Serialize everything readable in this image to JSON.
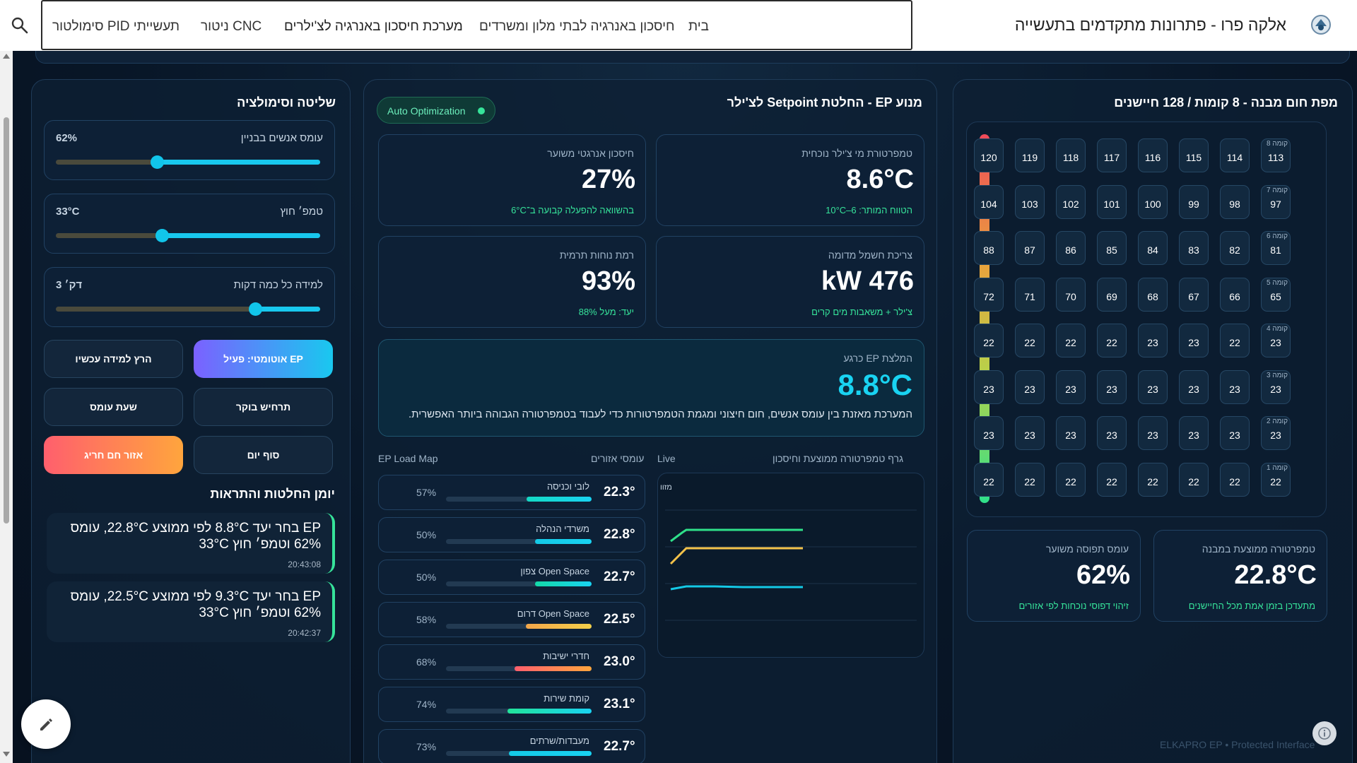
{
  "topbar": {
    "brand": "אלקה פרו - פתרונות מתקדמים בתעשייה",
    "nav": [
      "בית",
      "חיסכון באנרגיה לבתי מלון ומשרדים",
      "מערכת חיסכון באנרגיה לצ'ילרים",
      "ניטור CNC",
      "סימולטור PID תעשייתי"
    ]
  },
  "heatmap": {
    "title": "מפת חום מבנה - 8 קומות / 128 חיישנים",
    "floors": [
      {
        "label": "קומה 8",
        "values": [
          "113",
          "114",
          "115",
          "116",
          "117",
          "118",
          "119",
          "120"
        ]
      },
      {
        "label": "קומה 7",
        "values": [
          "97",
          "98",
          "99",
          "100",
          "101",
          "102",
          "103",
          "104"
        ]
      },
      {
        "label": "קומה 6",
        "values": [
          "81",
          "82",
          "83",
          "84",
          "85",
          "86",
          "87",
          "88"
        ]
      },
      {
        "label": "קומה 5",
        "values": [
          "65",
          "66",
          "67",
          "68",
          "69",
          "70",
          "71",
          "72"
        ]
      },
      {
        "label": "קומה 4",
        "values": [
          "23",
          "22",
          "23",
          "23",
          "22",
          "22",
          "22",
          "22"
        ]
      },
      {
        "label": "קומה 3",
        "values": [
          "23",
          "23",
          "23",
          "23",
          "23",
          "23",
          "23",
          "23"
        ]
      },
      {
        "label": "קומה 2",
        "values": [
          "23",
          "23",
          "23",
          "23",
          "23",
          "23",
          "23",
          "23"
        ]
      },
      {
        "label": "קומה 1",
        "values": [
          "22",
          "22",
          "22",
          "22",
          "22",
          "22",
          "22",
          "22"
        ]
      }
    ],
    "avg_temp_label": "טמפרטורה ממוצעת במבנה",
    "avg_temp": "22.8°C",
    "avg_temp_sub": "מתעדכן בזמן אמת מכל החיישנים",
    "occupancy_label": "עומס תפוסה משוער",
    "occupancy": "62%",
    "occupancy_sub": "זיהוי דפוסי נוכחות לפי אזורים"
  },
  "engine": {
    "title": "מנוע EP - החלטת Setpoint לצ'ילר",
    "badge": "Auto Optimization",
    "chiller_temp_label": "טמפרטורת מי צ'ילר נוכחית",
    "chiller_temp": "8.6°C",
    "chiller_temp_sub": "הטווח המותר: 6–10°C",
    "saving_label": "חיסכון אנרגטי משוער",
    "saving": "27%",
    "saving_sub": "בהשוואה להפעלה קבועה ב־6°C",
    "power_label": "צריכת חשמל מדומה",
    "power": "476 kW",
    "power_sub": "צ'ילר + משאבות מים קרים",
    "comfort_label": "רמת נוחות תרמית",
    "comfort": "93%",
    "comfort_sub": "יעד: מעל 88%",
    "rec_label": "המלצת EP כרגע",
    "rec_value": "8.8°C",
    "rec_text": "המערכת מאזנת בין עומס אנשים, חום חיצוני ומגמת הטמפרטורות כדי לעבוד בטמפרטורה הגבוהה ביותר האפשרית."
  },
  "zones": {
    "header_label": "עומסי אזורים",
    "header_map": "EP Load Map",
    "items": [
      {
        "name": "לובי וכניסה",
        "temp": "22.3°",
        "pct": "57%",
        "fill": 0.57,
        "color": "#14d9c4"
      },
      {
        "name": "משרדי הנהלה",
        "temp": "22.8°",
        "pct": "50%",
        "fill": 0.5,
        "color": "#14c9e6"
      },
      {
        "name": "Open Space צפון",
        "temp": "22.7°",
        "pct": "50%",
        "fill": 0.5,
        "color": "#14d9a8"
      },
      {
        "name": "Open Space דרום",
        "temp": "22.5°",
        "pct": "58%",
        "fill": 0.58,
        "color": "#f3c24a"
      },
      {
        "name": "חדרי ישיבות",
        "temp": "23.0°",
        "pct": "68%",
        "fill": 0.68,
        "color": "#ff7a45"
      },
      {
        "name": "קומת שירות",
        "temp": "23.1°",
        "pct": "74%",
        "fill": 0.74,
        "color": "#22e39a"
      },
      {
        "name": "מעבדות/שרתים",
        "temp": "22.7°",
        "pct": "73%",
        "fill": 0.73,
        "color": "#14c9e6"
      }
    ]
  },
  "graph": {
    "title": "גרף טמפרטורה ממוצעת וחיסכון",
    "live": "Live",
    "legend_stub": "מזוו"
  },
  "controls": {
    "title": "שליטה וסימולציה",
    "sliders": [
      {
        "label": "עומס אנשים בבניין",
        "value": "62%",
        "level": 0.62
      },
      {
        "label": "טמפ׳ חוץ",
        "value": "33°C",
        "level": 0.6
      },
      {
        "label": "למידה כל כמה דקות",
        "value": "3 דק׳",
        "level": 0.25
      }
    ],
    "buttons": {
      "auto": "EP אוטומטי: פעיל",
      "learn": "הרץ למידה עכשיו",
      "morning": "תרחיש בוקר",
      "peak": "שעת עומס",
      "eod": "סוף יום",
      "hot": "אזור חם חריג"
    },
    "log_title": "יומן החלטות והתראות",
    "log": [
      {
        "text": "EP בחר יעד 8.8°C לפי ממוצע 22.8°C, עומס 62% וטמפ׳ חוץ 33°C",
        "time": "20:43:08"
      },
      {
        "text": "EP בחר יעד 9.3°C לפי ממוצע 22.5°C, עומס 62% וטמפ׳ חוץ 33°C",
        "time": "20:42:37"
      }
    ]
  },
  "footer": {
    "tag": "ELKAPRO EP • Protected Interface"
  },
  "colors": {
    "accent": "#18c8ee",
    "success": "#36e39a",
    "background": "#081627"
  }
}
